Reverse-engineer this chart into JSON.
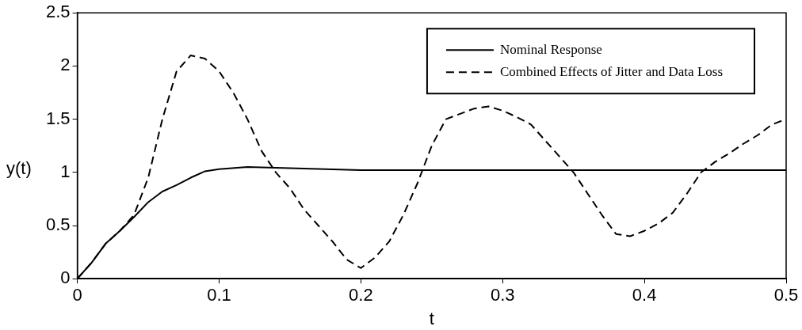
{
  "chart_data": {
    "type": "line",
    "xlabel": "t",
    "ylabel": "y(t)",
    "xlim": [
      0,
      0.5
    ],
    "xticks": [
      0,
      0.1,
      0.2,
      0.3,
      0.4,
      0.5
    ],
    "ylim": [
      0,
      2.5
    ],
    "yticks": [
      0,
      0.5,
      1,
      1.5,
      2,
      2.5
    ],
    "grid": false,
    "legend": "top right",
    "marker": "none",
    "series": [
      {
        "name": "Nominal Response",
        "color": "#000000",
        "line_style": "solid",
        "x": [
          0,
          0.01,
          0.02,
          0.03,
          0.04,
          0.05,
          0.06,
          0.07,
          0.08,
          0.09,
          0.1,
          0.12,
          0.15,
          0.2,
          0.3,
          0.5
        ],
        "values": [
          0,
          0.15,
          0.33,
          0.45,
          0.58,
          0.72,
          0.82,
          0.88,
          0.95,
          1.01,
          1.03,
          1.05,
          1.04,
          1.02,
          1.02,
          1.02
        ]
      },
      {
        "name": "Combined Effects of Jitter and Data Loss",
        "color": "#000000",
        "line_style": "dashed",
        "x": [
          0,
          0.01,
          0.02,
          0.03,
          0.04,
          0.05,
          0.06,
          0.07,
          0.08,
          0.09,
          0.1,
          0.11,
          0.12,
          0.13,
          0.14,
          0.15,
          0.16,
          0.17,
          0.18,
          0.19,
          0.2,
          0.21,
          0.22,
          0.23,
          0.24,
          0.25,
          0.26,
          0.27,
          0.28,
          0.29,
          0.3,
          0.31,
          0.32,
          0.33,
          0.34,
          0.35,
          0.36,
          0.37,
          0.38,
          0.39,
          0.4,
          0.41,
          0.42,
          0.43,
          0.44,
          0.45,
          0.46,
          0.47,
          0.48,
          0.49,
          0.5
        ],
        "values": [
          0,
          0.15,
          0.33,
          0.45,
          0.6,
          0.95,
          1.5,
          1.95,
          2.1,
          2.07,
          1.95,
          1.75,
          1.5,
          1.2,
          1.0,
          0.85,
          0.65,
          0.5,
          0.35,
          0.18,
          0.1,
          0.2,
          0.35,
          0.6,
          0.9,
          1.25,
          1.5,
          1.55,
          1.6,
          1.62,
          1.58,
          1.52,
          1.45,
          1.3,
          1.15,
          1.0,
          0.8,
          0.6,
          0.42,
          0.4,
          0.45,
          0.52,
          0.62,
          0.8,
          1.0,
          1.1,
          1.18,
          1.27,
          1.35,
          1.45,
          1.5
        ]
      }
    ]
  }
}
